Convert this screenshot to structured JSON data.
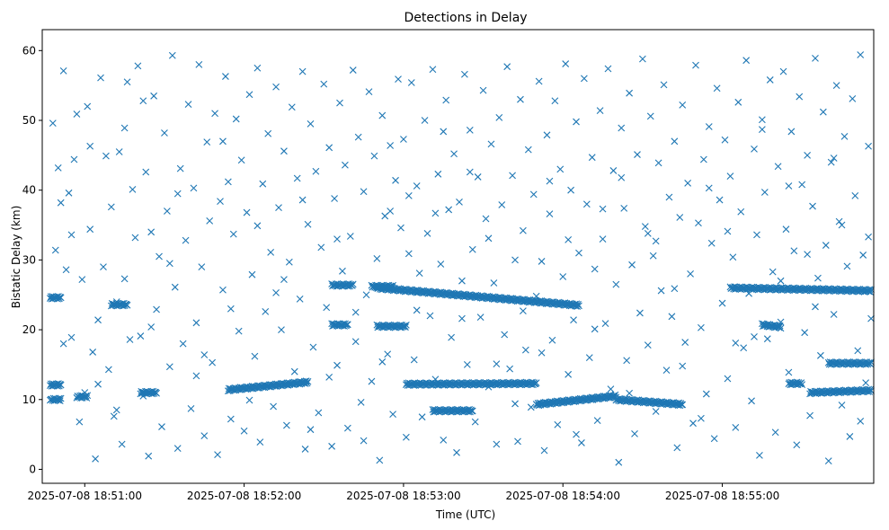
{
  "chart_data": {
    "type": "scatter",
    "title": "Detections in Delay",
    "xlabel": "Time (UTC)",
    "ylabel": "Bistatic Delay (km)",
    "marker": "x",
    "color": "#1f77b4",
    "x_unit": "seconds after 2025-07-08 18:50:00",
    "xlim": [
      44,
      357
    ],
    "ylim": [
      -2,
      63
    ],
    "xticks": [
      {
        "value": 60,
        "label": "2025-07-08 18:51:00"
      },
      {
        "value": 120,
        "label": "2025-07-08 18:52:00"
      },
      {
        "value": 180,
        "label": "2025-07-08 18:53:00"
      },
      {
        "value": 240,
        "label": "2025-07-08 18:54:00"
      },
      {
        "value": 300,
        "label": "2025-07-08 18:55:00"
      }
    ],
    "yticks": [
      {
        "value": 0,
        "label": "0"
      },
      {
        "value": 10,
        "label": "10"
      },
      {
        "value": 20,
        "label": "20"
      },
      {
        "value": 30,
        "label": "30"
      },
      {
        "value": 40,
        "label": "40"
      },
      {
        "value": 50,
        "label": "50"
      },
      {
        "value": 60,
        "label": "60"
      }
    ],
    "grid": false,
    "legend": "none",
    "tracks": [
      {
        "x_start": 47,
        "x_end": 51,
        "y_start": 24.6,
        "y_end": 24.6
      },
      {
        "x_start": 47,
        "x_end": 51,
        "y_start": 12.1,
        "y_end": 12.1
      },
      {
        "x_start": 47,
        "x_end": 51,
        "y_start": 10.0,
        "y_end": 10.0
      },
      {
        "x_start": 57,
        "x_end": 61,
        "y_start": 10.4,
        "y_end": 10.4
      },
      {
        "x_start": 70,
        "x_end": 76,
        "y_start": 23.6,
        "y_end": 23.6
      },
      {
        "x_start": 81,
        "x_end": 87,
        "y_start": 11.0,
        "y_end": 11.0
      },
      {
        "x_start": 114,
        "x_end": 144,
        "y_start": 11.4,
        "y_end": 12.5
      },
      {
        "x_start": 153,
        "x_end": 159,
        "y_start": 20.7,
        "y_end": 20.7
      },
      {
        "x_start": 153,
        "x_end": 161,
        "y_start": 26.4,
        "y_end": 26.4
      },
      {
        "x_start": 168,
        "x_end": 176,
        "y_start": 26.2,
        "y_end": 26.2
      },
      {
        "x_start": 170,
        "x_end": 181,
        "y_start": 20.5,
        "y_end": 20.5
      },
      {
        "x_start": 170,
        "x_end": 246,
        "y_start": 26.0,
        "y_end": 23.5
      },
      {
        "x_start": 181,
        "x_end": 230,
        "y_start": 12.2,
        "y_end": 12.3
      },
      {
        "x_start": 191,
        "x_end": 206,
        "y_start": 8.4,
        "y_end": 8.4
      },
      {
        "x_start": 230,
        "x_end": 260,
        "y_start": 9.3,
        "y_end": 10.5
      },
      {
        "x_start": 260,
        "x_end": 285,
        "y_start": 10.0,
        "y_end": 9.3
      },
      {
        "x_start": 303,
        "x_end": 356,
        "y_start": 26.0,
        "y_end": 25.6
      },
      {
        "x_start": 315,
        "x_end": 322,
        "y_start": 20.7,
        "y_end": 20.4
      },
      {
        "x_start": 325,
        "x_end": 330,
        "y_start": 12.3,
        "y_end": 12.3
      },
      {
        "x_start": 333,
        "x_end": 356,
        "y_start": 11.0,
        "y_end": 11.3
      },
      {
        "x_start": 340,
        "x_end": 356,
        "y_start": 15.2,
        "y_end": 15.2
      }
    ],
    "scattered_points": [
      [
        48,
        49.6
      ],
      [
        49,
        31.4
      ],
      [
        50,
        43.2
      ],
      [
        51,
        38.2
      ],
      [
        52,
        57.1
      ],
      [
        53,
        28.6
      ],
      [
        54,
        39.6
      ],
      [
        55,
        18.9
      ],
      [
        56,
        44.4
      ],
      [
        57,
        50.9
      ],
      [
        58,
        6.8
      ],
      [
        59,
        27.2
      ],
      [
        60,
        11.0
      ],
      [
        61,
        52.0
      ],
      [
        62,
        34.4
      ],
      [
        63,
        16.8
      ],
      [
        64,
        1.5
      ],
      [
        65,
        21.4
      ],
      [
        66,
        56.1
      ],
      [
        67,
        29.0
      ],
      [
        68,
        44.9
      ],
      [
        69,
        14.3
      ],
      [
        70,
        37.6
      ],
      [
        71,
        7.6
      ],
      [
        72,
        24.0
      ],
      [
        73,
        45.5
      ],
      [
        74,
        3.6
      ],
      [
        75,
        27.3
      ],
      [
        76,
        55.5
      ],
      [
        77,
        18.6
      ],
      [
        78,
        40.1
      ],
      [
        79,
        33.2
      ],
      [
        80,
        57.8
      ],
      [
        81,
        19.1
      ],
      [
        82,
        10.5
      ],
      [
        83,
        42.6
      ],
      [
        84,
        1.9
      ],
      [
        85,
        34.0
      ],
      [
        86,
        53.5
      ],
      [
        87,
        22.9
      ],
      [
        88,
        30.5
      ],
      [
        89,
        6.1
      ],
      [
        90,
        48.2
      ],
      [
        91,
        37.0
      ],
      [
        92,
        14.7
      ],
      [
        93,
        59.3
      ],
      [
        94,
        26.1
      ],
      [
        95,
        3.0
      ],
      [
        96,
        43.1
      ],
      [
        97,
        18.0
      ],
      [
        98,
        32.8
      ],
      [
        99,
        52.3
      ],
      [
        100,
        8.7
      ],
      [
        101,
        40.3
      ],
      [
        102,
        21.0
      ],
      [
        103,
        58.0
      ],
      [
        104,
        29.0
      ],
      [
        105,
        4.8
      ],
      [
        106,
        46.9
      ],
      [
        107,
        35.6
      ],
      [
        108,
        15.3
      ],
      [
        109,
        51.0
      ],
      [
        110,
        2.1
      ],
      [
        111,
        38.4
      ],
      [
        112,
        25.7
      ],
      [
        113,
        56.3
      ],
      [
        114,
        41.2
      ],
      [
        115,
        7.2
      ],
      [
        116,
        33.7
      ],
      [
        117,
        50.2
      ],
      [
        118,
        19.8
      ],
      [
        119,
        44.3
      ],
      [
        120,
        5.5
      ],
      [
        121,
        36.8
      ],
      [
        122,
        53.7
      ],
      [
        123,
        27.9
      ],
      [
        124,
        16.2
      ],
      [
        125,
        57.5
      ],
      [
        126,
        3.9
      ],
      [
        127,
        40.9
      ],
      [
        128,
        22.6
      ],
      [
        129,
        48.1
      ],
      [
        130,
        31.1
      ],
      [
        131,
        9.0
      ],
      [
        132,
        54.8
      ],
      [
        133,
        37.5
      ],
      [
        134,
        20.0
      ],
      [
        135,
        45.6
      ],
      [
        136,
        6.3
      ],
      [
        137,
        29.7
      ],
      [
        138,
        51.9
      ],
      [
        139,
        14.0
      ],
      [
        140,
        41.7
      ],
      [
        141,
        24.4
      ],
      [
        142,
        57.0
      ],
      [
        143,
        2.9
      ],
      [
        144,
        35.1
      ],
      [
        145,
        49.5
      ],
      [
        146,
        17.5
      ],
      [
        147,
        42.7
      ],
      [
        148,
        8.1
      ],
      [
        149,
        31.8
      ],
      [
        150,
        55.2
      ],
      [
        151,
        23.2
      ],
      [
        152,
        46.1
      ],
      [
        153,
        3.3
      ],
      [
        154,
        38.8
      ],
      [
        155,
        14.9
      ],
      [
        156,
        52.5
      ],
      [
        157,
        28.4
      ],
      [
        158,
        43.6
      ],
      [
        159,
        5.9
      ],
      [
        160,
        33.4
      ],
      [
        161,
        57.2
      ],
      [
        162,
        18.3
      ],
      [
        163,
        47.6
      ],
      [
        164,
        9.6
      ],
      [
        165,
        39.8
      ],
      [
        166,
        25.0
      ],
      [
        167,
        54.1
      ],
      [
        168,
        12.6
      ],
      [
        169,
        44.9
      ],
      [
        170,
        30.2
      ],
      [
        171,
        1.3
      ],
      [
        172,
        50.7
      ],
      [
        173,
        36.3
      ],
      [
        174,
        16.5
      ],
      [
        175,
        46.4
      ],
      [
        176,
        7.9
      ],
      [
        177,
        41.4
      ],
      [
        178,
        55.9
      ],
      [
        179,
        34.6
      ],
      [
        180,
        47.3
      ],
      [
        181,
        4.6
      ],
      [
        182,
        30.9
      ],
      [
        183,
        55.4
      ],
      [
        184,
        15.7
      ],
      [
        185,
        40.6
      ],
      [
        186,
        28.1
      ],
      [
        187,
        7.5
      ],
      [
        188,
        50.0
      ],
      [
        189,
        33.8
      ],
      [
        190,
        22.0
      ],
      [
        191,
        57.3
      ],
      [
        192,
        12.9
      ],
      [
        193,
        42.3
      ],
      [
        194,
        29.4
      ],
      [
        195,
        4.2
      ],
      [
        196,
        52.9
      ],
      [
        197,
        37.2
      ],
      [
        198,
        18.9
      ],
      [
        199,
        45.2
      ],
      [
        200,
        2.4
      ],
      [
        201,
        38.3
      ],
      [
        202,
        27.0
      ],
      [
        203,
        56.6
      ],
      [
        204,
        15.0
      ],
      [
        205,
        48.6
      ],
      [
        206,
        31.5
      ],
      [
        207,
        6.8
      ],
      [
        208,
        41.9
      ],
      [
        209,
        21.8
      ],
      [
        210,
        54.3
      ],
      [
        211,
        35.9
      ],
      [
        212,
        11.8
      ],
      [
        213,
        46.6
      ],
      [
        214,
        26.7
      ],
      [
        215,
        3.6
      ],
      [
        216,
        50.4
      ],
      [
        217,
        37.9
      ],
      [
        218,
        19.3
      ],
      [
        219,
        57.7
      ],
      [
        220,
        14.4
      ],
      [
        221,
        42.1
      ],
      [
        222,
        30.0
      ],
      [
        223,
        4.0
      ],
      [
        224,
        53.0
      ],
      [
        225,
        34.2
      ],
      [
        226,
        17.1
      ],
      [
        227,
        45.8
      ],
      [
        228,
        8.9
      ],
      [
        229,
        39.4
      ],
      [
        230,
        24.8
      ],
      [
        231,
        55.6
      ],
      [
        232,
        29.8
      ],
      [
        233,
        2.7
      ],
      [
        234,
        47.9
      ],
      [
        235,
        36.6
      ],
      [
        236,
        18.5
      ],
      [
        237,
        52.8
      ],
      [
        238,
        6.4
      ],
      [
        239,
        43.0
      ],
      [
        240,
        27.6
      ],
      [
        241,
        58.1
      ],
      [
        242,
        13.6
      ],
      [
        243,
        40.0
      ],
      [
        244,
        21.4
      ],
      [
        245,
        49.8
      ],
      [
        246,
        31.0
      ],
      [
        247,
        3.8
      ],
      [
        248,
        56.0
      ],
      [
        249,
        38.0
      ],
      [
        250,
        16.0
      ],
      [
        251,
        44.7
      ],
      [
        252,
        28.7
      ],
      [
        253,
        7.0
      ],
      [
        254,
        51.4
      ],
      [
        255,
        33.0
      ],
      [
        256,
        20.9
      ],
      [
        257,
        57.4
      ],
      [
        258,
        11.5
      ],
      [
        259,
        42.8
      ],
      [
        260,
        26.5
      ],
      [
        261,
        1.0
      ],
      [
        262,
        48.9
      ],
      [
        263,
        37.4
      ],
      [
        264,
        15.6
      ],
      [
        265,
        53.9
      ],
      [
        266,
        29.3
      ],
      [
        267,
        5.1
      ],
      [
        268,
        45.1
      ],
      [
        269,
        22.4
      ],
      [
        270,
        58.8
      ],
      [
        271,
        34.8
      ],
      [
        272,
        17.8
      ],
      [
        273,
        50.6
      ],
      [
        274,
        30.6
      ],
      [
        275,
        8.3
      ],
      [
        276,
        43.9
      ],
      [
        277,
        25.6
      ],
      [
        278,
        55.1
      ],
      [
        279,
        14.2
      ],
      [
        280,
        39.0
      ],
      [
        281,
        21.9
      ],
      [
        282,
        47.0
      ],
      [
        283,
        3.1
      ],
      [
        284,
        36.1
      ],
      [
        285,
        52.2
      ],
      [
        286,
        18.2
      ],
      [
        287,
        41.0
      ],
      [
        288,
        28.0
      ],
      [
        289,
        6.6
      ],
      [
        290,
        57.9
      ],
      [
        291,
        35.3
      ],
      [
        292,
        20.3
      ],
      [
        293,
        44.4
      ],
      [
        294,
        10.8
      ],
      [
        295,
        49.1
      ],
      [
        296,
        32.4
      ],
      [
        297,
        4.4
      ],
      [
        298,
        54.6
      ],
      [
        299,
        38.6
      ],
      [
        300,
        23.8
      ],
      [
        301,
        47.2
      ],
      [
        302,
        13.0
      ],
      [
        303,
        42.0
      ],
      [
        304,
        30.4
      ],
      [
        305,
        6.0
      ],
      [
        306,
        52.6
      ],
      [
        307,
        36.9
      ],
      [
        308,
        17.4
      ],
      [
        309,
        58.6
      ],
      [
        310,
        25.2
      ],
      [
        311,
        9.8
      ],
      [
        312,
        45.9
      ],
      [
        313,
        33.6
      ],
      [
        314,
        2.0
      ],
      [
        315,
        50.1
      ],
      [
        316,
        39.7
      ],
      [
        317,
        18.7
      ],
      [
        318,
        55.8
      ],
      [
        319,
        28.3
      ],
      [
        320,
        5.3
      ],
      [
        321,
        43.4
      ],
      [
        322,
        21.1
      ],
      [
        323,
        57.0
      ],
      [
        324,
        34.4
      ],
      [
        325,
        13.9
      ],
      [
        326,
        48.4
      ],
      [
        327,
        31.3
      ],
      [
        328,
        3.5
      ],
      [
        329,
        53.4
      ],
      [
        330,
        40.8
      ],
      [
        331,
        19.6
      ],
      [
        332,
        45.0
      ],
      [
        333,
        7.7
      ],
      [
        334,
        37.7
      ],
      [
        335,
        58.9
      ],
      [
        336,
        27.4
      ],
      [
        337,
        16.3
      ],
      [
        338,
        51.2
      ],
      [
        339,
        32.1
      ],
      [
        340,
        1.2
      ],
      [
        341,
        44.0
      ],
      [
        342,
        22.2
      ],
      [
        343,
        55.0
      ],
      [
        344,
        35.5
      ],
      [
        345,
        9.2
      ],
      [
        346,
        47.7
      ],
      [
        347,
        29.1
      ],
      [
        348,
        4.7
      ],
      [
        349,
        53.1
      ],
      [
        350,
        39.2
      ],
      [
        351,
        17.0
      ],
      [
        352,
        59.4
      ],
      [
        353,
        30.7
      ],
      [
        354,
        12.4
      ],
      [
        355,
        46.3
      ],
      [
        356,
        21.6
      ],
      [
        55,
        33.6
      ],
      [
        65,
        12.2
      ],
      [
        75,
        48.9
      ],
      [
        85,
        20.4
      ],
      [
        95,
        39.5
      ],
      [
        105,
        16.4
      ],
      [
        115,
        23.0
      ],
      [
        125,
        34.9
      ],
      [
        135,
        27.2
      ],
      [
        145,
        5.7
      ],
      [
        155,
        33.0
      ],
      [
        165,
        4.1
      ],
      [
        175,
        37.0
      ],
      [
        185,
        22.8
      ],
      [
        195,
        48.4
      ],
      [
        205,
        42.6
      ],
      [
        215,
        15.1
      ],
      [
        225,
        22.7
      ],
      [
        235,
        41.3
      ],
      [
        245,
        5.0
      ],
      [
        255,
        37.3
      ],
      [
        265,
        10.9
      ],
      [
        275,
        32.7
      ],
      [
        285,
        14.8
      ],
      [
        295,
        40.3
      ],
      [
        305,
        18.1
      ],
      [
        315,
        48.7
      ],
      [
        325,
        40.6
      ],
      [
        335,
        23.3
      ],
      [
        345,
        35.0
      ],
      [
        355,
        33.3
      ],
      [
        52,
        18.0
      ],
      [
        62,
        46.3
      ],
      [
        72,
        8.5
      ],
      [
        82,
        52.8
      ],
      [
        92,
        29.5
      ],
      [
        102,
        13.4
      ],
      [
        112,
        47.0
      ],
      [
        122,
        9.9
      ],
      [
        132,
        25.3
      ],
      [
        142,
        38.6
      ],
      [
        152,
        13.2
      ],
      [
        162,
        22.5
      ],
      [
        172,
        15.4
      ],
      [
        182,
        39.2
      ],
      [
        192,
        36.7
      ],
      [
        202,
        21.6
      ],
      [
        212,
        33.1
      ],
      [
        222,
        9.4
      ],
      [
        232,
        16.7
      ],
      [
        242,
        32.9
      ],
      [
        252,
        20.1
      ],
      [
        262,
        41.8
      ],
      [
        272,
        33.8
      ],
      [
        282,
        25.9
      ],
      [
        292,
        7.3
      ],
      [
        302,
        34.1
      ],
      [
        312,
        19.0
      ],
      [
        322,
        27.0
      ],
      [
        332,
        30.8
      ],
      [
        342,
        44.6
      ],
      [
        352,
        6.9
      ]
    ]
  }
}
